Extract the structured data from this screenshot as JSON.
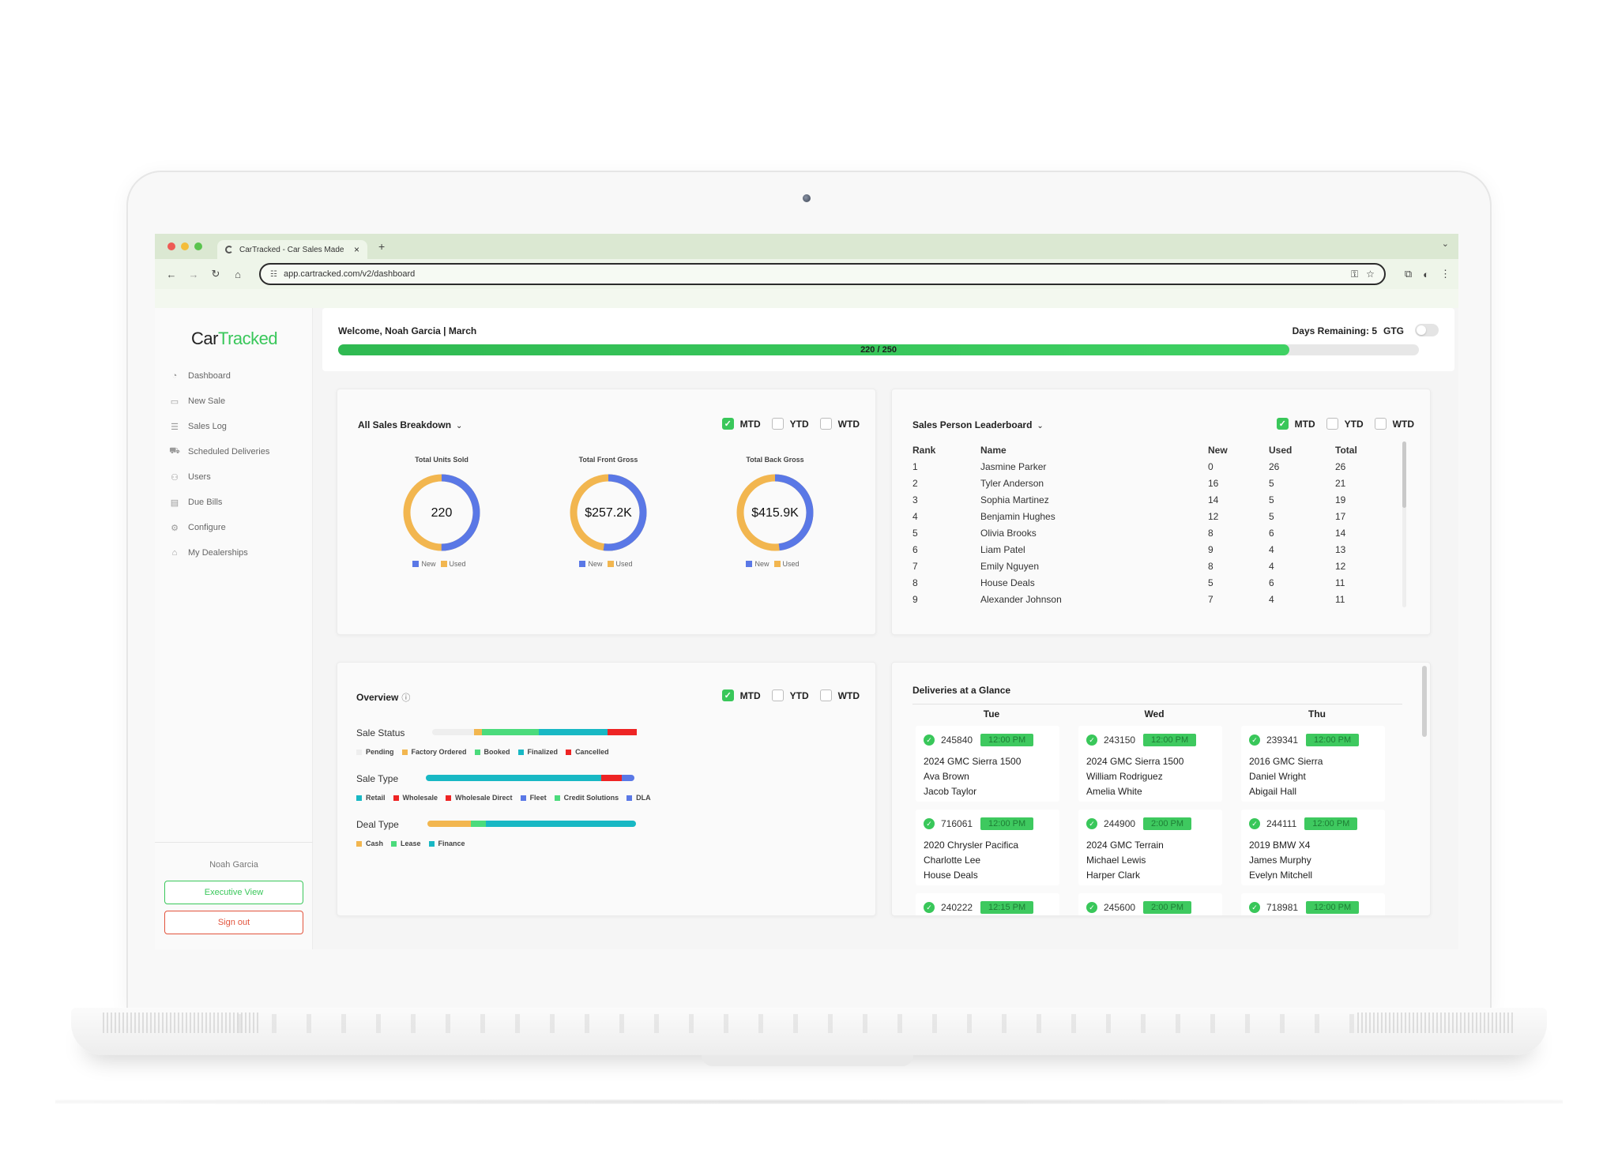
{
  "browser": {
    "tab_title": "CarTracked - Car Sales Made",
    "tab_close": "×",
    "new_tab": "+",
    "url": "app.cartracked.com/v2/dashboard",
    "icons": [
      "back-icon",
      "forward-icon",
      "reload-icon",
      "home-icon",
      "site-info-icon",
      "key-icon",
      "star-icon",
      "extensions-icon",
      "profile-icon",
      "menu-icon"
    ]
  },
  "sidebar": {
    "logo_car": "Car",
    "logo_tracked": "Tracked",
    "items": [
      {
        "label": "Dashboard",
        "icon": "dashboard-icon"
      },
      {
        "label": "New Sale",
        "icon": "new-sale-icon"
      },
      {
        "label": "Sales Log",
        "icon": "list-icon"
      },
      {
        "label": "Scheduled Deliveries",
        "icon": "car-icon"
      },
      {
        "label": "Users",
        "icon": "users-icon"
      },
      {
        "label": "Due Bills",
        "icon": "clipboard-icon"
      },
      {
        "label": "Configure",
        "icon": "gears-icon"
      },
      {
        "label": "My Dealerships",
        "icon": "house-icon"
      }
    ],
    "user_name": "Noah Garcia",
    "exec_view": "Executive View",
    "sign_out": "Sign out"
  },
  "header": {
    "welcome": "Welcome, Noah Garcia | March",
    "days_remaining": "Days Remaining: 5",
    "gtg": "GTG",
    "progress_text": "220 / 250",
    "progress_value": 220,
    "progress_max": 250
  },
  "periods": {
    "mtd": "MTD",
    "ytd": "YTD",
    "wtd": "WTD"
  },
  "breakdown": {
    "title": "All Sales Breakdown",
    "legend_new": "New",
    "legend_used": "Used",
    "colors": {
      "new": "#5a78e6",
      "used": "#f2b64f"
    },
    "donuts": [
      {
        "label": "Total Units Sold",
        "value": "220",
        "new_fraction": 0.5
      },
      {
        "label": "Total Front Gross",
        "value": "$257.2K",
        "new_fraction": 0.52
      },
      {
        "label": "Total Back Gross",
        "value": "$415.9K",
        "new_fraction": 0.48
      }
    ]
  },
  "leaderboard": {
    "title": "Sales Person Leaderboard",
    "headers": {
      "rank": "Rank",
      "name": "Name",
      "new": "New",
      "used": "Used",
      "total": "Total"
    },
    "rows": [
      {
        "rank": "1",
        "name": "Jasmine Parker",
        "new": "0",
        "used": "26",
        "total": "26"
      },
      {
        "rank": "2",
        "name": "Tyler Anderson",
        "new": "16",
        "used": "5",
        "total": "21"
      },
      {
        "rank": "3",
        "name": "Sophia Martinez",
        "new": "14",
        "used": "5",
        "total": "19"
      },
      {
        "rank": "4",
        "name": "Benjamin Hughes",
        "new": "12",
        "used": "5",
        "total": "17"
      },
      {
        "rank": "5",
        "name": "Olivia Brooks",
        "new": "8",
        "used": "6",
        "total": "14"
      },
      {
        "rank": "6",
        "name": "Liam Patel",
        "new": "9",
        "used": "4",
        "total": "13"
      },
      {
        "rank": "7",
        "name": "Emily Nguyen",
        "new": "8",
        "used": "4",
        "total": "12"
      },
      {
        "rank": "8",
        "name": "House Deals",
        "new": "5",
        "used": "6",
        "total": "11"
      },
      {
        "rank": "9",
        "name": "Alexander Johnson",
        "new": "7",
        "used": "4",
        "total": "11"
      }
    ]
  },
  "overview": {
    "title": "Overview",
    "info_icon": "ⓘ",
    "sale_status": {
      "label": "Sale Status",
      "segments": [
        {
          "name": "Pending",
          "color": "#eeeeee",
          "fraction": 0.2
        },
        {
          "name": "Factory Ordered",
          "color": "#f2b64f",
          "fraction": 0.04
        },
        {
          "name": "Booked",
          "color": "#4bdb7c",
          "fraction": 0.27
        },
        {
          "name": "Finalized",
          "color": "#18b8c4",
          "fraction": 0.33
        },
        {
          "name": "Cancelled",
          "color": "#ee2424",
          "fraction": 0.14
        }
      ]
    },
    "sale_type": {
      "label": "Sale Type",
      "segments": [
        {
          "name": "Retail",
          "color": "#18b8c4",
          "fraction": 0.84
        },
        {
          "name": "Wholesale",
          "color": "#ee2424",
          "fraction": 0.1
        },
        {
          "name": "Wholesale Direct",
          "color": "#ee2424",
          "fraction": 0.0
        },
        {
          "name": "Fleet",
          "color": "#5a78e6",
          "fraction": 0.06
        },
        {
          "name": "Credit Solutions",
          "color": "#4bdb7c",
          "fraction": 0.0
        },
        {
          "name": "DLA",
          "color": "#5a78e6",
          "fraction": 0.0
        }
      ]
    },
    "deal_type": {
      "label": "Deal Type",
      "segments": [
        {
          "name": "Cash",
          "color": "#f2b64f",
          "fraction": 0.21
        },
        {
          "name": "Lease",
          "color": "#4bdb7c",
          "fraction": 0.07
        },
        {
          "name": "Finance",
          "color": "#18b8c4",
          "fraction": 0.72
        }
      ]
    }
  },
  "deliveries": {
    "title": "Deliveries at a Glance",
    "days": [
      "Tue",
      "Wed",
      "Thu"
    ],
    "cards": [
      [
        {
          "id": "245840",
          "time": "12:00 PM",
          "vehicle": "2024 GMC Sierra 1500",
          "customer": "Ava Brown",
          "salesperson": "Jacob Taylor"
        },
        {
          "id": "716061",
          "time": "12:00 PM",
          "vehicle": "2020 Chrysler Pacifica",
          "customer": "Charlotte Lee",
          "salesperson": "House Deals"
        },
        {
          "id": "240222",
          "time": "12:15 PM",
          "vehicle": "",
          "customer": "",
          "salesperson": ""
        }
      ],
      [
        {
          "id": "243150",
          "time": "12:00 PM",
          "vehicle": "2024 GMC Sierra 1500",
          "customer": "William Rodriguez",
          "salesperson": "Amelia White"
        },
        {
          "id": "244900",
          "time": "2:00 PM",
          "vehicle": "2024 GMC Terrain",
          "customer": "Michael Lewis",
          "salesperson": "Harper Clark"
        },
        {
          "id": "245600",
          "time": "2:00 PM",
          "vehicle": "",
          "customer": "",
          "salesperson": ""
        }
      ],
      [
        {
          "id": "239341",
          "time": "12:00 PM",
          "vehicle": "2016 GMC Sierra",
          "customer": "Daniel Wright",
          "salesperson": "Abigail Hall"
        },
        {
          "id": "244111",
          "time": "12:00 PM",
          "vehicle": "2019 BMW X4",
          "customer": "James Murphy",
          "salesperson": "Evelyn Mitchell"
        },
        {
          "id": "718981",
          "time": "12:00 PM",
          "vehicle": "",
          "customer": "",
          "salesperson": ""
        }
      ]
    ]
  }
}
